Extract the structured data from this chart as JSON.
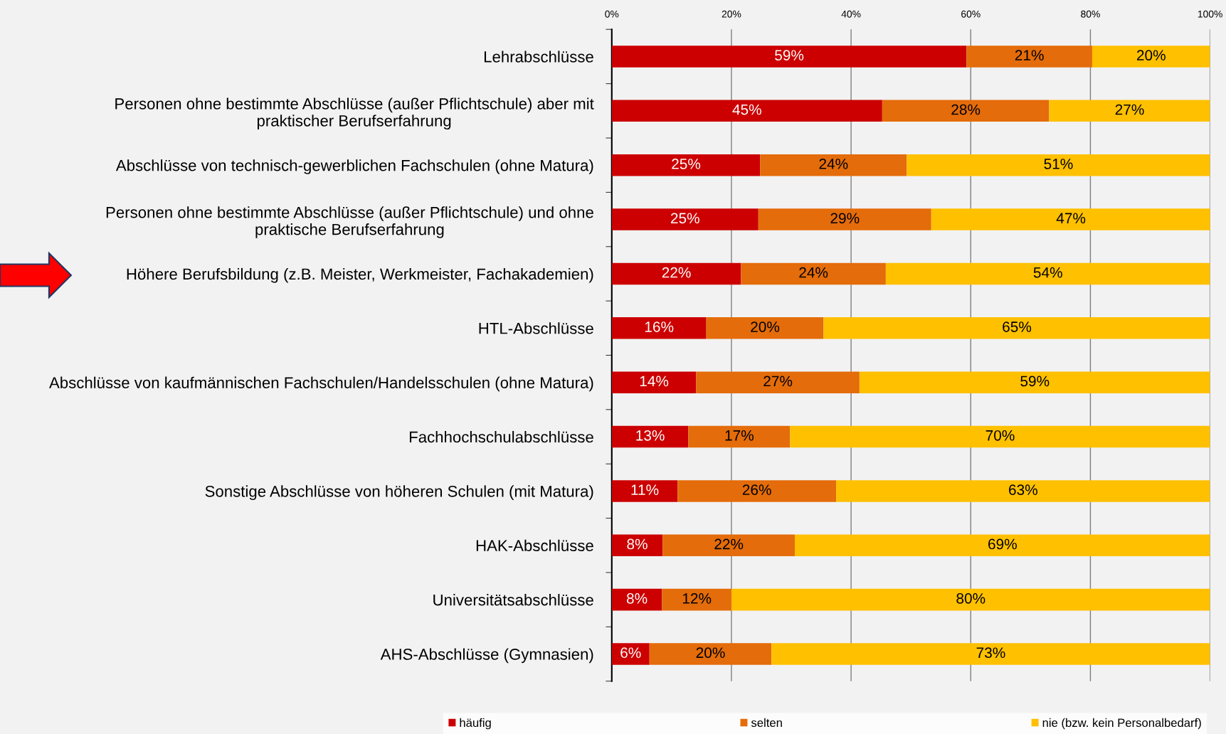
{
  "chart_data": {
    "type": "bar",
    "orientation": "horizontal",
    "stacked": true,
    "categories": [
      "Lehrabschlüsse",
      "Personen ohne bestimmte Abschlüsse (außer Pflichtschule) aber mit\npraktischer Berufserfahrung",
      "Abschlüsse von technisch-gewerblichen Fachschulen (ohne Matura)",
      "Personen ohne bestimmte Abschlüsse (außer Pflichtschule) und ohne\npraktische Berufserfahrung",
      "Höhere Berufsbildung (z.B. Meister, Werkmeister, Fachakademien)",
      "HTL-Abschlüsse",
      "Abschlüsse von kaufmännischen Fachschulen/Handelsschulen (ohne Matura)",
      "Fachhochschulabschlüsse",
      "Sonstige Abschlüsse von höheren Schulen (mit Matura)",
      "HAK-Abschlüsse",
      "Universitätsabschlüsse",
      "AHS-Abschlüsse (Gymnasien)"
    ],
    "series": [
      {
        "name": "häufig",
        "color": "#cc0000",
        "values": [
          59.3,
          45.2,
          24.8,
          24.5,
          21.6,
          15.8,
          14.1,
          12.8,
          11.0,
          8.5,
          8.4,
          6.3
        ],
        "value_labels": [
          "59%",
          "45%",
          "25%",
          "25%",
          "22%",
          "16%",
          "14%",
          "13%",
          "11%",
          "8%",
          "8%",
          "6%"
        ]
      },
      {
        "name": "selten",
        "color": "#e46c0a",
        "values": [
          21.0,
          27.9,
          24.5,
          28.9,
          24.2,
          19.6,
          27.3,
          17.0,
          26.5,
          22.1,
          11.6,
          20.4
        ],
        "value_labels": [
          "21%",
          "28%",
          "24%",
          "29%",
          "24%",
          "20%",
          "27%",
          "17%",
          "26%",
          "22%",
          "12%",
          "20%"
        ]
      },
      {
        "name": "nie (bzw. kein Personalbedarf)",
        "color": "#ffc000",
        "values": [
          19.7,
          26.9,
          50.7,
          46.7,
          54.2,
          64.6,
          58.6,
          70.2,
          62.5,
          69.4,
          80.0,
          73.3
        ],
        "value_labels": [
          "20%",
          "27%",
          "51%",
          "47%",
          "54%",
          "65%",
          "59%",
          "70%",
          "63%",
          "69%",
          "80%",
          "73%"
        ]
      }
    ],
    "xlim": [
      0,
      100
    ],
    "xticks": [
      {
        "value": 0,
        "label": "0%"
      },
      {
        "value": 20,
        "label": "20%"
      },
      {
        "value": 40,
        "label": "40%"
      },
      {
        "value": 60,
        "label": "60%"
      },
      {
        "value": 80,
        "label": "80%"
      },
      {
        "value": 100,
        "label": "100%"
      }
    ],
    "grid": "x",
    "legend": "bottom"
  }
}
